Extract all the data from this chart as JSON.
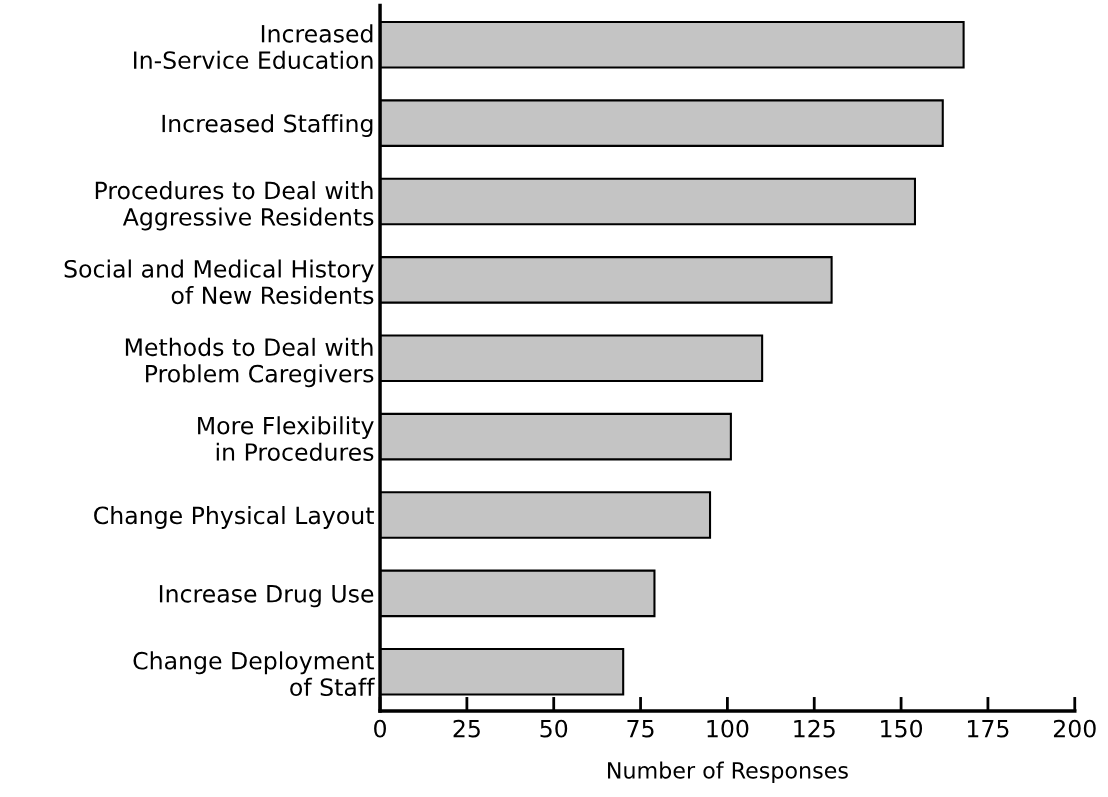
{
  "chart_data": {
    "type": "bar",
    "orientation": "horizontal",
    "xlabel": "Number of Responses",
    "categories": [
      "Increased\nIn-Service Education",
      "Increased Staffing",
      "Procedures to Deal with\nAggressive Residents",
      "Social and Medical History\nof New Residents",
      "Methods to Deal with\nProblem Caregivers",
      "More Flexibility\nin Procedures",
      "Change Physical Layout",
      "Increase Drug Use",
      "Change Deployment\nof Staff"
    ],
    "values": [
      168,
      162,
      154,
      130,
      110,
      101,
      95,
      79,
      70
    ],
    "color": "#c4c4c4",
    "xlim": [
      0,
      200
    ],
    "xticks": [
      0,
      25,
      50,
      75,
      100,
      125,
      150,
      175,
      200
    ],
    "grid": false
  }
}
